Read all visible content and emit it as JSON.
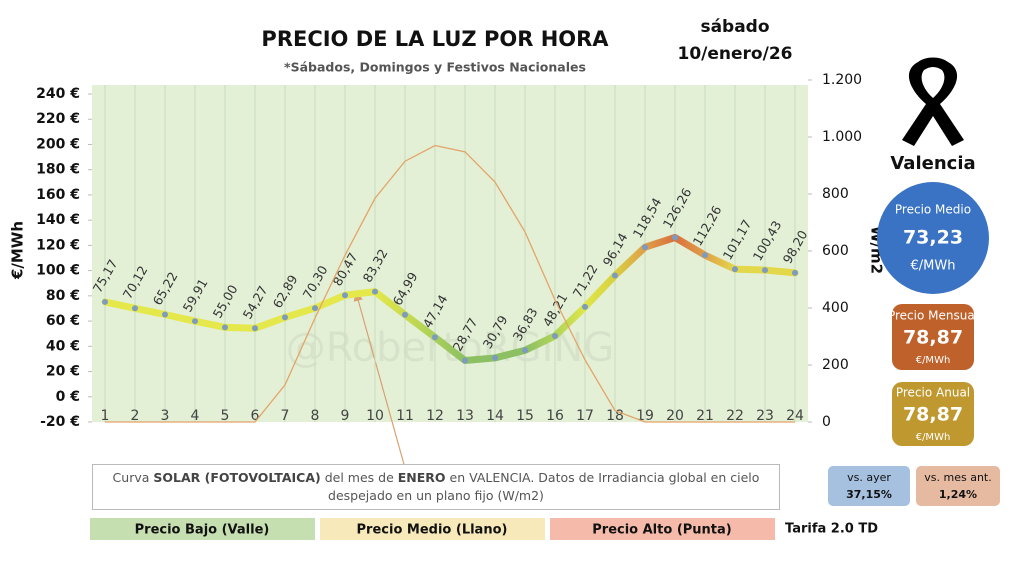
{
  "chart_data": {
    "type": "line",
    "title": "PRECIO DE LA LUZ POR HORA",
    "subtitle": "*Sábados, Domingos y Festivos Nacionales",
    "y_label": "€/MWh",
    "y2_label": "W/m2",
    "categories": [
      "1",
      "2",
      "3",
      "4",
      "5",
      "6",
      "7",
      "8",
      "9",
      "10",
      "11",
      "12",
      "13",
      "14",
      "15",
      "16",
      "17",
      "18",
      "19",
      "20",
      "21",
      "22",
      "23",
      "24"
    ],
    "ylim": [
      -20,
      240
    ],
    "yticks": [
      {
        "value": -20,
        "label": "-20 €"
      },
      {
        "value": 0,
        "label": "0 €"
      },
      {
        "value": 20,
        "label": "20 €"
      },
      {
        "value": 40,
        "label": "40 €"
      },
      {
        "value": 60,
        "label": "60 €"
      },
      {
        "value": 80,
        "label": "80 €"
      },
      {
        "value": 100,
        "label": "100 €"
      },
      {
        "value": 120,
        "label": "120 €"
      },
      {
        "value": 140,
        "label": "140 €"
      },
      {
        "value": 160,
        "label": "160 €"
      },
      {
        "value": 180,
        "label": "180 €"
      },
      {
        "value": 200,
        "label": "200 €"
      },
      {
        "value": 220,
        "label": "220 €"
      },
      {
        "value": 240,
        "label": "240 €"
      }
    ],
    "y2lim": [
      0,
      1200
    ],
    "y2ticks": [
      0,
      200,
      400,
      600,
      800,
      {
        "value": 1000,
        "label": "1.000"
      },
      {
        "value": 1200,
        "label": "1.200"
      }
    ],
    "grid": true,
    "series": [
      {
        "values": [
          75.17,
          70.12,
          65.22,
          59.91,
          55.0,
          54.27,
          62.89,
          70.3,
          80.47,
          83.32,
          64.99,
          47.14,
          28.77,
          30.79,
          36.83,
          48.21,
          71.22,
          96.14,
          118.54,
          126.26,
          112.26,
          101.17,
          100.43,
          98.2
        ],
        "value_labels": [
          "75,17",
          "70,12",
          "65,22",
          "59,91",
          "55,00",
          "54,27",
          "62,89",
          "70,30",
          "80,47",
          "83,32",
          "64,99",
          "47,14",
          "28,77",
          "30,79",
          "36,83",
          "48,21",
          "71,22",
          "96,14",
          "118,54",
          "126,26",
          "112,26",
          "101,17",
          "100,43",
          "98,20"
        ],
        "colors": [
          "#e4e84a",
          "#e4e84a",
          "#e4e84a",
          "#e4e84a",
          "#e4e84a",
          "#e4e84a",
          "#e4e84a",
          "#e4e84a",
          "#e4e84a",
          "#e4e84a",
          "#c9dc4e",
          "#a9cf5a",
          "#8cc063",
          "#8cc063",
          "#8cc063",
          "#b0d45a",
          "#dfe64a",
          "#d8d040",
          "#e0a048",
          "#d9703e",
          "#e0a048",
          "#e3d84a",
          "#e3d84a",
          "#e3d84a"
        ],
        "marker_color": "#7d9bbf"
      },
      {
        "axis": "y2",
        "color": "#e3a468",
        "values": [
          0,
          0,
          0,
          0,
          0,
          0,
          130,
          365,
          585,
          785,
          915,
          970,
          948,
          842,
          667,
          428,
          218,
          40,
          0,
          0,
          0,
          0,
          0,
          0
        ]
      }
    ],
    "annotation": [
      "Curva ",
      "SOLAR (FOTOVOLTAICA)",
      " del mes de ",
      "ENERO",
      " en VALENCIA. Datos de Irradiancia global en cielo despejado en un plano fijo (W/m2)"
    ],
    "watermark": "@RobertoRGING"
  },
  "date": {
    "weekday": "sábado",
    "day": "10/enero/26"
  },
  "city": "Valencia",
  "average": {
    "label": "Precio Medio",
    "value": "73,23",
    "unit": "€/MWh"
  },
  "monthly": {
    "label": "Precio Mensual",
    "value": "78,87",
    "unit": "€/MWh"
  },
  "yearly": {
    "label": "Precio Anual",
    "value": "78,87",
    "unit": "€/MWh"
  },
  "vs_yesterday": {
    "label": "vs. ayer",
    "value": "37,15%"
  },
  "vs_month": {
    "label": "vs. mes ant.",
    "value": "1,24%"
  },
  "levels": [
    {
      "label": "Precio Bajo (Valle)",
      "color": "#c6dfb1"
    },
    {
      "label": "Precio Medio (Llano)",
      "color": "#f8e9ba"
    },
    {
      "label": "Precio Alto (Punta)",
      "color": "#f5baa9"
    }
  ],
  "tariff": "Tarifa 2.0 TD"
}
